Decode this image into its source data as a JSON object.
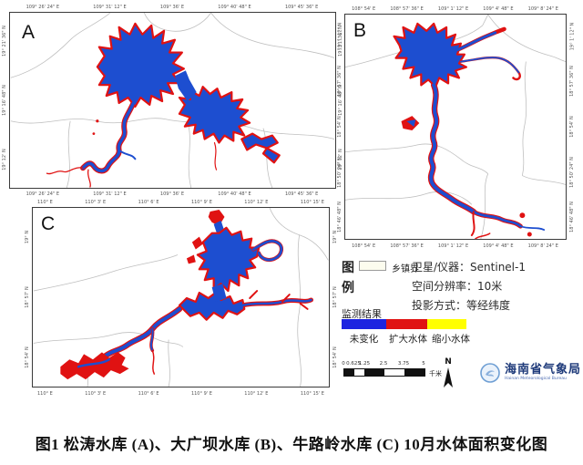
{
  "figure": {
    "caption": "图1  松涛水库 (A)、大广坝水库 (B)、牛路岭水库 (C) 10月水体面积变化图"
  },
  "colors": {
    "water_unchanged": "#1d4ed0",
    "water_expanded": "#e01212",
    "water_shrunk": "#ffff00",
    "admin_boundary": "#bfbfbf",
    "frame_border": "#3a3a3a",
    "logo_blue": "#1e3a7a"
  },
  "panels": {
    "a": {
      "letter": "A",
      "lon_labels": [
        "109° 26' 24\" E",
        "109° 31' 12\" E",
        "109° 36' E",
        "109° 40' 48\" E",
        "109° 45' 36\" E"
      ],
      "lat_labels": [
        "19° 21' 36\" N",
        "19° 16' 48\" N",
        "19° 12' N"
      ]
    },
    "b": {
      "letter": "B",
      "lon_labels": [
        "108° 54' E",
        "108° 57' 36\" E",
        "109° 1' 12\" E",
        "109° 4' 48\" E",
        "109° 8' 24\" E"
      ],
      "lat_labels": [
        "19° 1' 12\" N",
        "18° 57' 36\" N",
        "18° 54' N",
        "18° 50' 24\" N",
        "18° 46' 48\" N"
      ]
    },
    "c": {
      "letter": "C",
      "lon_labels": [
        "110° E",
        "110° 3' E",
        "110° 6' E",
        "110° 9' E",
        "110° 12' E",
        "110° 15' E"
      ],
      "lat_labels": [
        "19° N",
        "18° 57' N",
        "18° 54' N"
      ]
    }
  },
  "legend": {
    "title_char_1": "图",
    "title_char_2": "例",
    "township_boundary_label": "乡镇界",
    "info_lines": [
      "卫星/仪器：Sentinel-1",
      "空间分辨率：10米",
      "投影方式：等经纬度"
    ],
    "results_title": "监测结果",
    "classes": [
      {
        "label": "未变化",
        "color": "#1d24e0"
      },
      {
        "label": "扩大水体",
        "color": "#e01212"
      },
      {
        "label": "缩小水体",
        "color": "#ffff00"
      }
    ]
  },
  "scalebar": {
    "ticks": [
      "0",
      "0.625",
      "1.25",
      "2.5",
      "3.75",
      "5"
    ],
    "unit": "千米"
  },
  "north_arrow": {
    "label": "N"
  },
  "logo": {
    "name": "海南省气象局",
    "subtitle": "Hainan Meteorological Bureau"
  }
}
